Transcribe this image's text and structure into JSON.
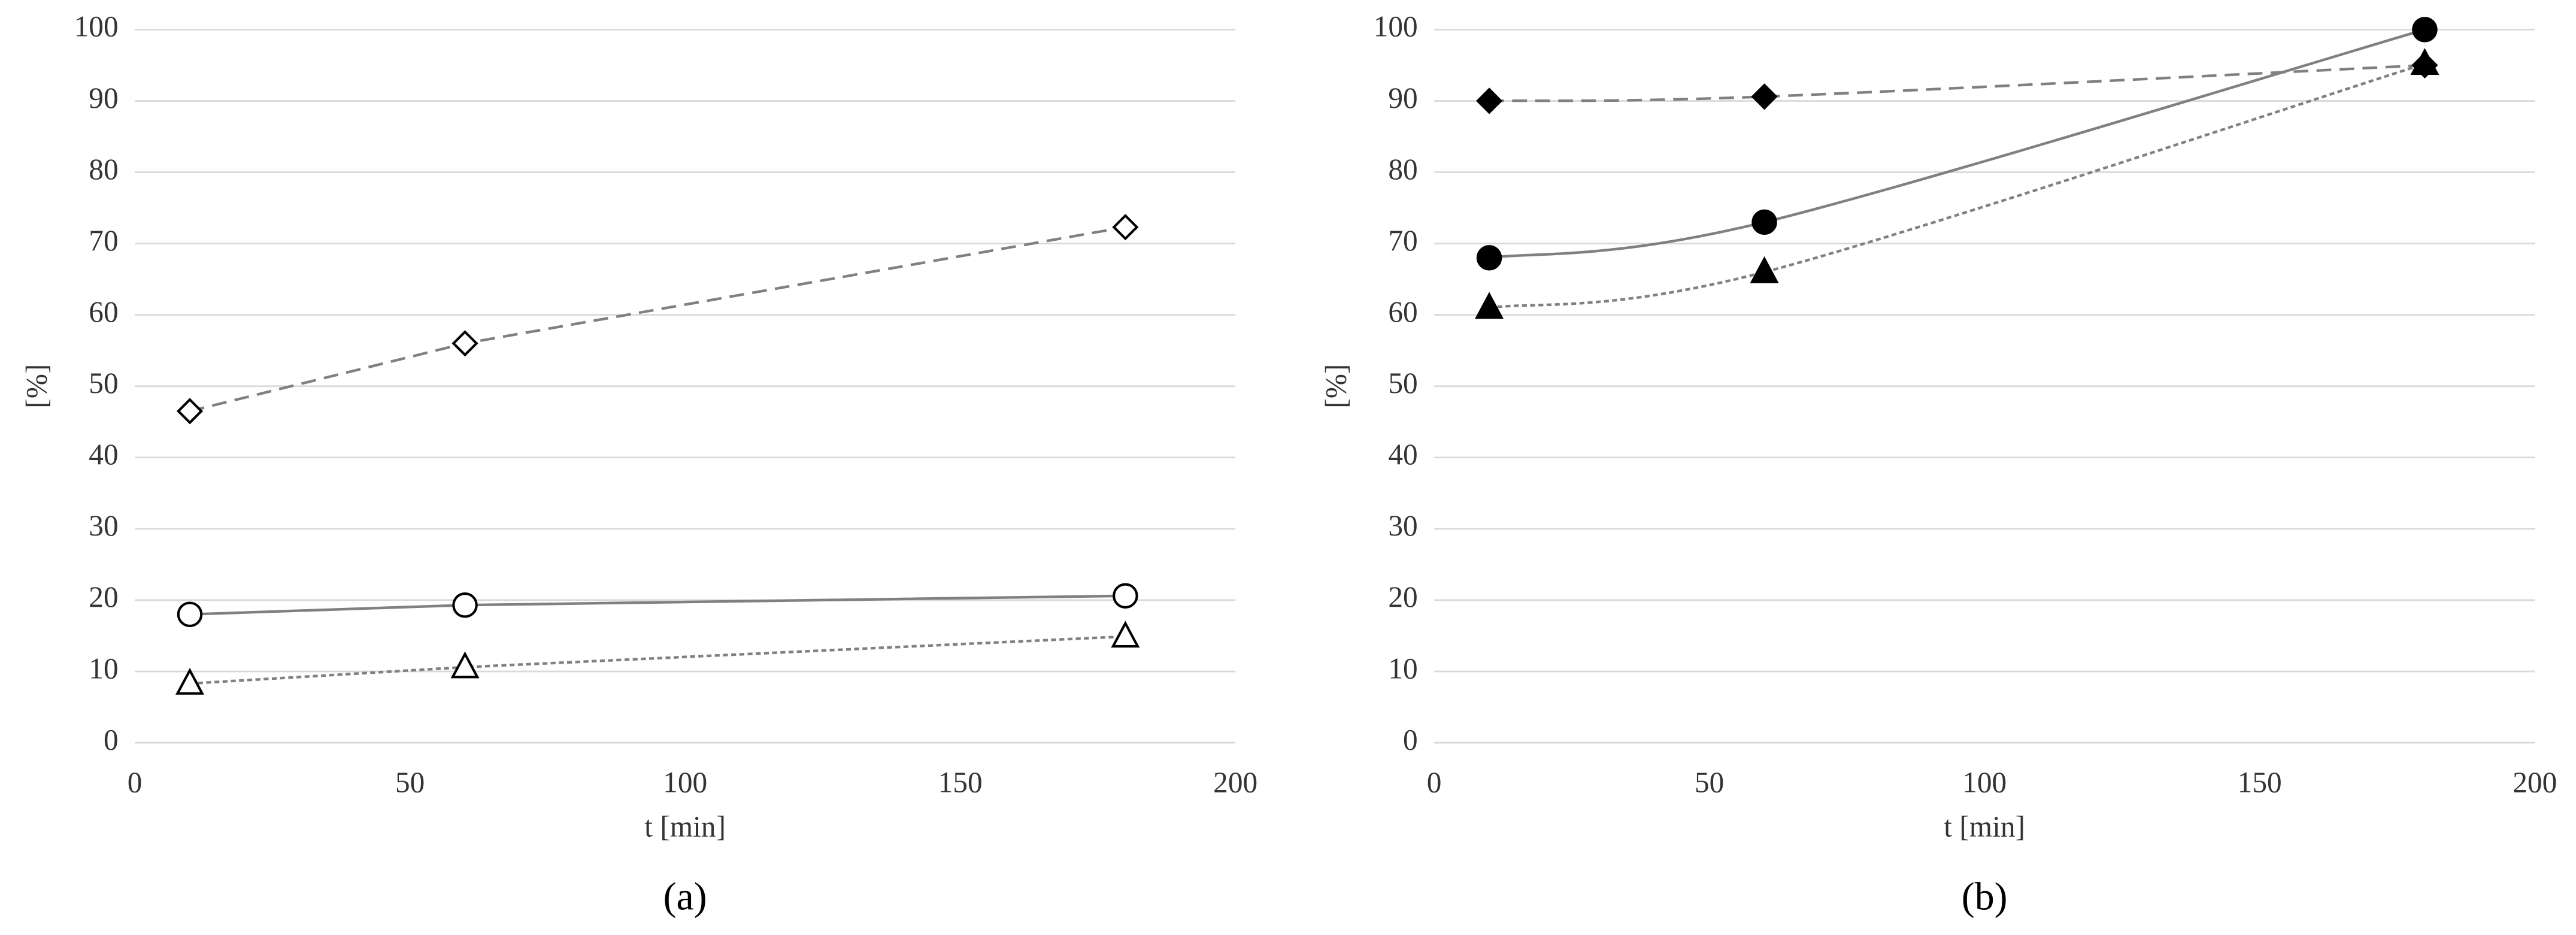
{
  "chart_data": [
    {
      "type": "line",
      "caption": "(a)",
      "x_label": "t [min]",
      "y_label": "[%]",
      "x": [
        10,
        60,
        180
      ],
      "xlim": [
        0,
        200
      ],
      "xticks": [
        0,
        50,
        100,
        150,
        200
      ],
      "ylim": [
        0,
        100
      ],
      "yticks": [
        0,
        10,
        20,
        30,
        40,
        50,
        60,
        70,
        80,
        90,
        100
      ],
      "grid": true,
      "smooth": false,
      "series": [
        {
          "color": "#808080",
          "line_style": "dashed",
          "marker": "diamond",
          "marker_color": "#000000",
          "filled": false,
          "values": [
            46.5,
            56,
            72.3
          ]
        },
        {
          "color": "#808080",
          "line_style": "solid",
          "marker": "circle",
          "marker_color": "#000000",
          "filled": false,
          "values": [
            18,
            19.3,
            20.6
          ]
        },
        {
          "color": "#808080",
          "line_style": "dotted",
          "marker": "triangle",
          "marker_color": "#000000",
          "filled": false,
          "values": [
            8.3,
            10.6,
            14.9
          ]
        }
      ]
    },
    {
      "type": "line",
      "caption": "(b)",
      "x_label": "t [min]",
      "y_label": "[%]",
      "x": [
        10,
        60,
        180
      ],
      "xlim": [
        0,
        200
      ],
      "xticks": [
        0,
        50,
        100,
        150,
        200
      ],
      "ylim": [
        0,
        100
      ],
      "yticks": [
        0,
        10,
        20,
        30,
        40,
        50,
        60,
        70,
        80,
        90,
        100
      ],
      "grid": true,
      "smooth": true,
      "series": [
        {
          "color": "#808080",
          "line_style": "dashed",
          "marker": "diamond",
          "marker_color": "#000000",
          "filled": true,
          "values": [
            90,
            90.6,
            95
          ]
        },
        {
          "color": "#808080",
          "line_style": "solid",
          "marker": "circle",
          "marker_color": "#000000",
          "filled": true,
          "values": [
            68,
            73,
            100
          ]
        },
        {
          "color": "#808080",
          "line_style": "dotted",
          "marker": "triangle",
          "marker_color": "#000000",
          "filled": true,
          "values": [
            61,
            66,
            95.2
          ]
        }
      ]
    }
  ]
}
